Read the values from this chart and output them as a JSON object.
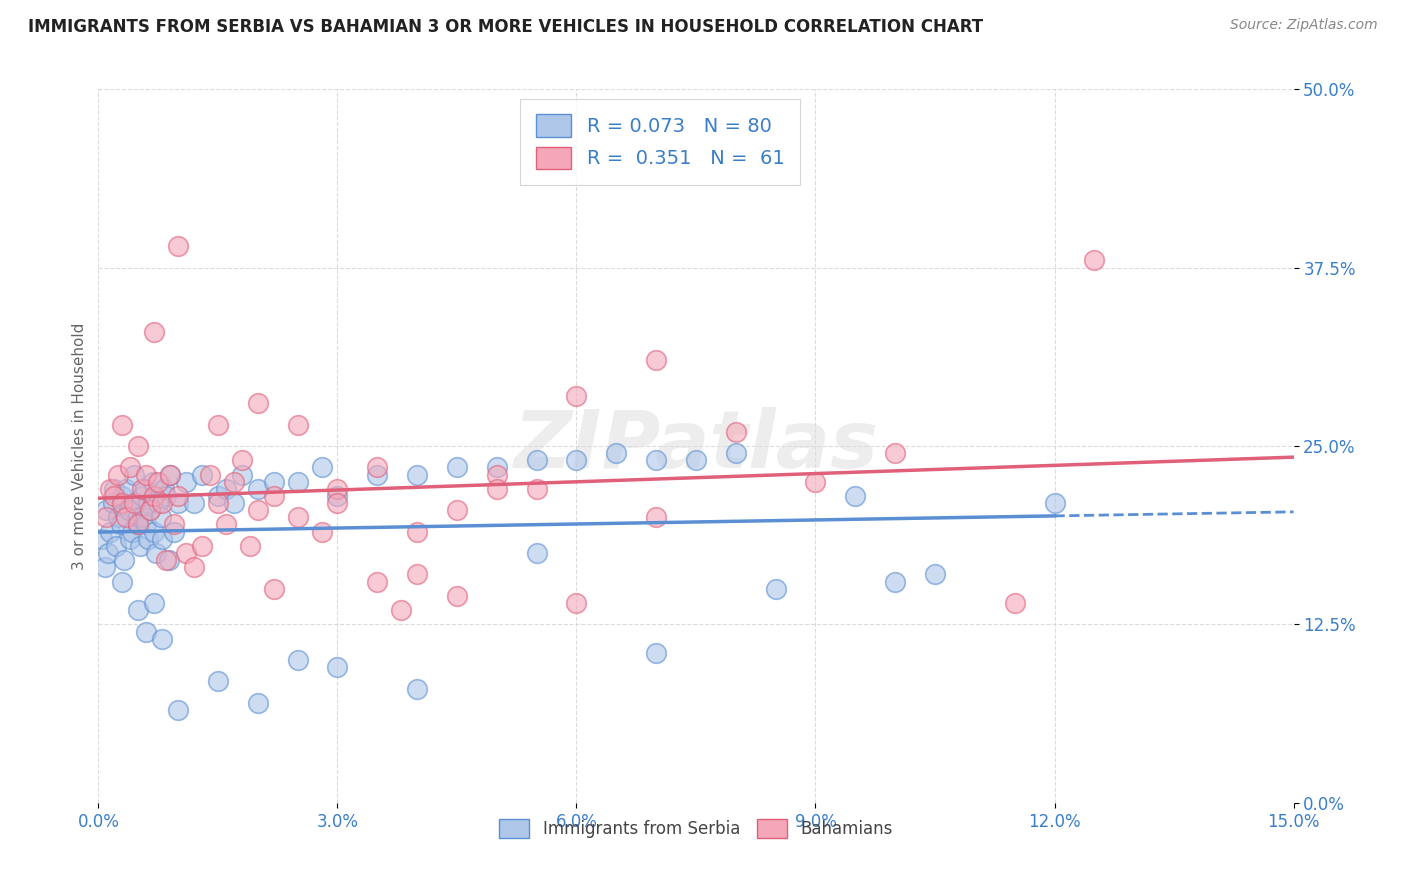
{
  "title": "IMMIGRANTS FROM SERBIA VS BAHAMIAN 3 OR MORE VEHICLES IN HOUSEHOLD CORRELATION CHART",
  "source": "Source: ZipAtlas.com",
  "xlabel_vals": [
    0.0,
    3.0,
    6.0,
    9.0,
    12.0,
    15.0
  ],
  "ylabel_vals": [
    0.0,
    12.5,
    25.0,
    37.5,
    50.0
  ],
  "xmin": 0.0,
  "xmax": 15.0,
  "ymin": 0.0,
  "ymax": 50.0,
  "serbia_color": "#aec6e8",
  "serbia_color_line": "#5b8fd4",
  "bahamian_color": "#f4a7b9",
  "bahamian_color_line": "#e0607a",
  "serbia_R": 0.073,
  "serbia_N": 80,
  "bahamian_R": 0.351,
  "bahamian_N": 61,
  "legend_color": "#3a7ec8",
  "bg_color": "#ffffff",
  "grid_color": "#cccccc",
  "ylabel": "3 or more Vehicles in Household",
  "serbia_x": [
    0.05,
    0.08,
    0.1,
    0.12,
    0.15,
    0.18,
    0.2,
    0.22,
    0.25,
    0.28,
    0.3,
    0.32,
    0.35,
    0.38,
    0.4,
    0.42,
    0.45,
    0.48,
    0.5,
    0.5,
    0.52,
    0.55,
    0.55,
    0.58,
    0.6,
    0.62,
    0.62,
    0.65,
    0.68,
    0.7,
    0.72,
    0.75,
    0.78,
    0.8,
    0.82,
    0.85,
    0.88,
    0.9,
    0.95,
    1.0,
    1.1,
    1.2,
    1.3,
    1.5,
    1.6,
    1.7,
    1.8,
    2.0,
    2.2,
    2.5,
    2.8,
    3.0,
    3.5,
    4.0,
    4.5,
    5.0,
    5.5,
    6.0,
    6.5,
    7.0,
    7.5,
    8.0,
    9.5,
    10.5,
    0.3,
    0.5,
    0.6,
    0.7,
    0.8,
    1.0,
    1.5,
    2.0,
    2.5,
    3.0,
    4.0,
    5.5,
    7.0,
    8.5,
    10.0,
    12.0
  ],
  "serbia_y": [
    18.5,
    16.5,
    20.5,
    17.5,
    19.0,
    21.0,
    22.0,
    18.0,
    20.0,
    19.5,
    21.5,
    17.0,
    22.0,
    20.5,
    18.5,
    19.0,
    23.0,
    21.0,
    19.5,
    20.0,
    18.0,
    21.5,
    20.0,
    22.0,
    19.5,
    21.0,
    18.5,
    20.5,
    22.5,
    19.0,
    17.5,
    21.0,
    20.0,
    18.5,
    22.0,
    21.5,
    17.0,
    23.0,
    19.0,
    21.0,
    22.5,
    21.0,
    23.0,
    21.5,
    22.0,
    21.0,
    23.0,
    22.0,
    22.5,
    22.5,
    23.5,
    21.5,
    23.0,
    23.0,
    23.5,
    23.5,
    24.0,
    24.0,
    24.5,
    24.0,
    24.0,
    24.5,
    21.5,
    16.0,
    15.5,
    13.5,
    12.0,
    14.0,
    11.5,
    6.5,
    8.5,
    7.0,
    10.0,
    9.5,
    8.0,
    17.5,
    10.5,
    15.0,
    15.5,
    21.0
  ],
  "bahamian_x": [
    0.1,
    0.15,
    0.2,
    0.25,
    0.3,
    0.35,
    0.4,
    0.45,
    0.5,
    0.55,
    0.6,
    0.65,
    0.7,
    0.75,
    0.8,
    0.85,
    0.9,
    0.95,
    1.0,
    1.1,
    1.2,
    1.3,
    1.4,
    1.5,
    1.6,
    1.7,
    1.8,
    1.9,
    2.0,
    2.2,
    2.5,
    2.8,
    3.0,
    3.5,
    4.0,
    4.5,
    5.0,
    5.5,
    6.0,
    7.0,
    0.3,
    0.5,
    0.7,
    1.0,
    1.5,
    2.0,
    2.5,
    3.0,
    3.5,
    4.0,
    5.0,
    6.0,
    7.0,
    8.0,
    9.0,
    10.0,
    12.5,
    2.2,
    3.8,
    4.5,
    11.5
  ],
  "bahamian_y": [
    20.0,
    22.0,
    21.5,
    23.0,
    21.0,
    20.0,
    23.5,
    21.0,
    19.5,
    22.0,
    23.0,
    20.5,
    21.5,
    22.5,
    21.0,
    17.0,
    23.0,
    19.5,
    21.5,
    17.5,
    16.5,
    18.0,
    23.0,
    21.0,
    19.5,
    22.5,
    24.0,
    18.0,
    20.5,
    21.5,
    20.0,
    19.0,
    22.0,
    23.5,
    19.0,
    20.5,
    23.0,
    22.0,
    14.0,
    20.0,
    26.5,
    25.0,
    33.0,
    39.0,
    26.5,
    28.0,
    26.5,
    21.0,
    15.5,
    16.0,
    22.0,
    28.5,
    31.0,
    26.0,
    22.5,
    24.5,
    38.0,
    15.0,
    13.5,
    14.5,
    14.0
  ]
}
